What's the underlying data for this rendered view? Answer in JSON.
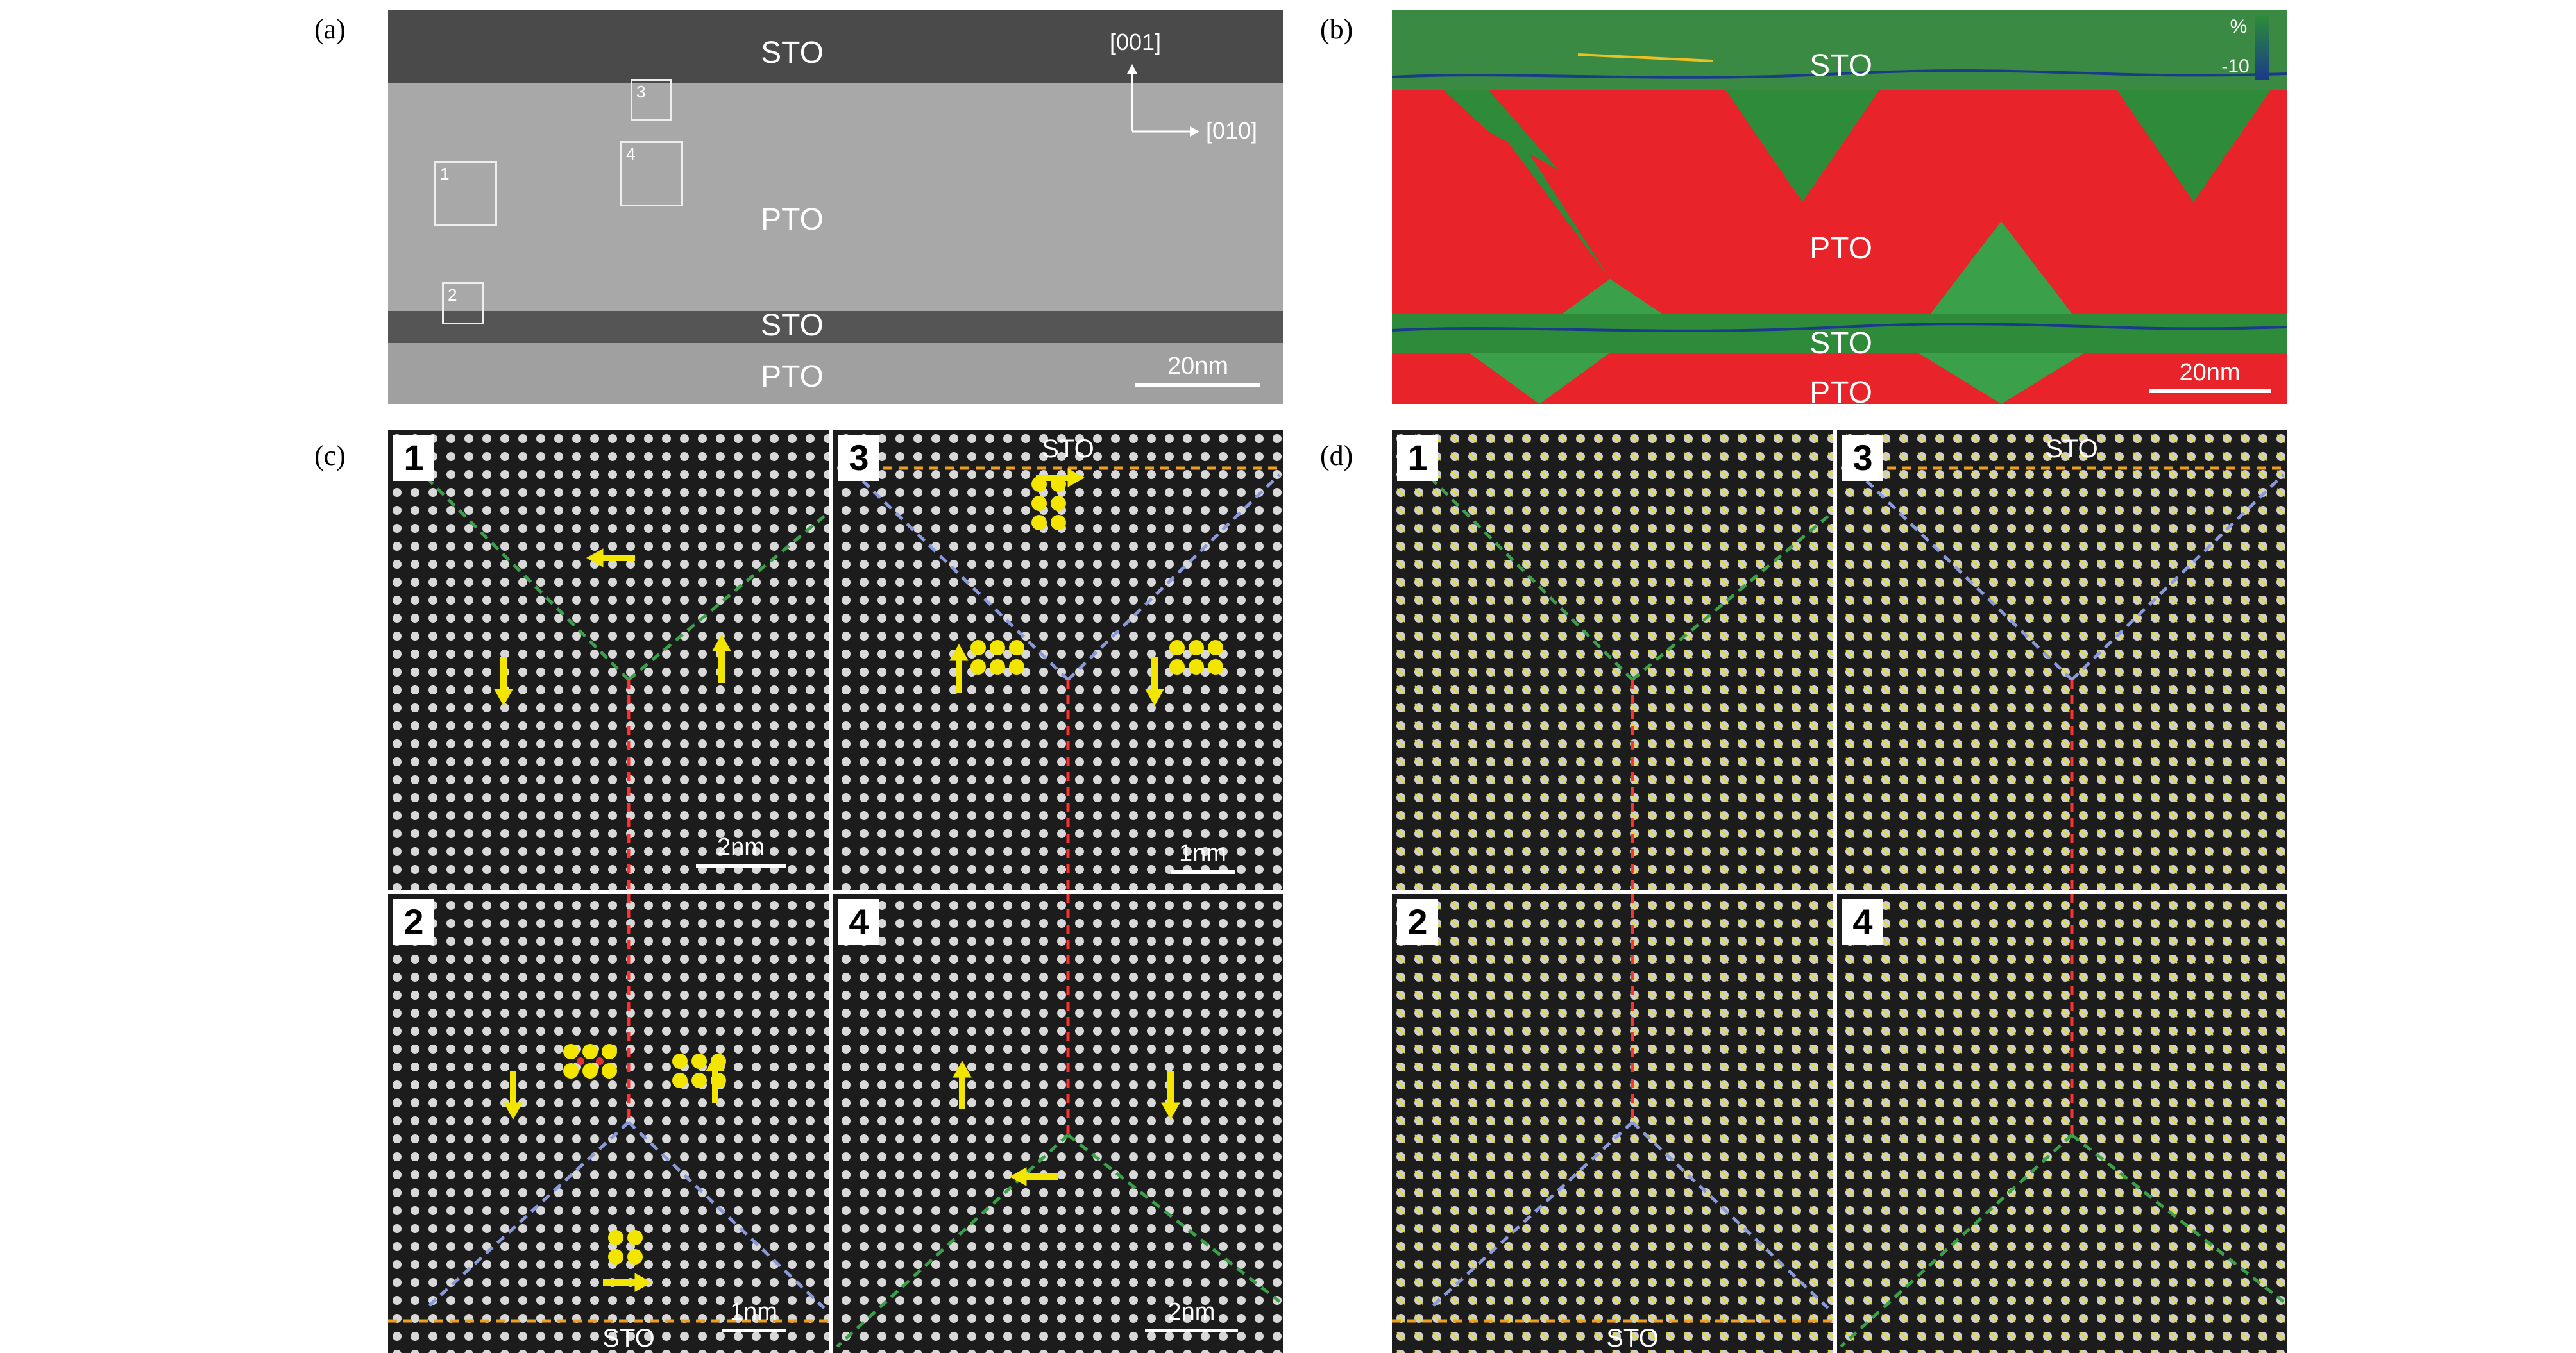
{
  "panel_labels": {
    "a": "(a)",
    "b": "(b)",
    "c": "(c)",
    "d": "(d)"
  },
  "panel_a": {
    "layer_sto_top": "STO",
    "layer_pto": "PTO",
    "layer_sto_mid": "STO",
    "layer_pto_bottom": "PTO",
    "axis_vertical": "[001]",
    "axis_horizontal": "[010]",
    "boxes": [
      "1",
      "2",
      "3",
      "4"
    ],
    "scalebar": "20nm"
  },
  "panel_b": {
    "layer_sto_top": "STO",
    "layer_pto": "PTO",
    "layer_sto_mid": "STO",
    "layer_pto_bottom": "PTO",
    "colorbar_top": "%",
    "colorbar_bottom": "-10",
    "scalebar": "20nm",
    "colors": {
      "red": "#e8232a",
      "green": "#2e8b3a"
    }
  },
  "panel_c": {
    "sub": [
      {
        "num": "1",
        "scalebar": "2nm"
      },
      {
        "num": "3",
        "top_label": "STO",
        "scalebar": "1nm"
      },
      {
        "num": "2",
        "bottom_label": "STO",
        "scalebar": "1nm"
      },
      {
        "num": "4",
        "scalebar": "2nm"
      }
    ]
  },
  "panel_d": {
    "sub": [
      {
        "num": "1"
      },
      {
        "num": "3",
        "top_label": "STO"
      },
      {
        "num": "2",
        "bottom_label": "STO"
      },
      {
        "num": "4"
      }
    ]
  },
  "colors": {
    "domain_wall_red": "#ff3030",
    "wall_green": "#3aa04a",
    "wall_blue": "#8a9ad8",
    "interface_orange": "#f0a020",
    "arrow_yellow": "#f2e600"
  }
}
